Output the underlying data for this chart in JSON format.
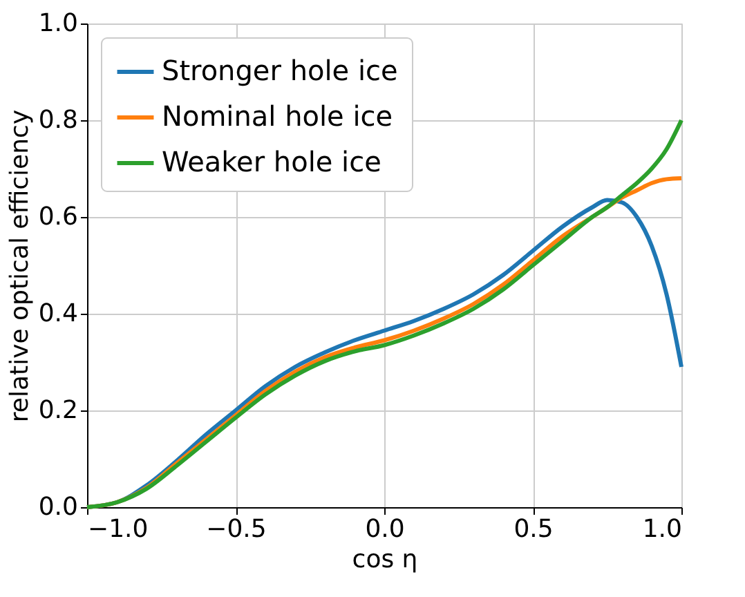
{
  "chart_data": {
    "type": "line",
    "xlabel": "cos η",
    "ylabel": "relative optical efficiency",
    "x": [
      -1.0,
      -0.9,
      -0.8,
      -0.7,
      -0.6,
      -0.5,
      -0.4,
      -0.3,
      -0.2,
      -0.1,
      0.0,
      0.1,
      0.2,
      0.3,
      0.4,
      0.5,
      0.6,
      0.7,
      0.75,
      0.8,
      0.85,
      0.9,
      0.95,
      1.0
    ],
    "series": [
      {
        "name": "Stronger hole ice",
        "color": "#1f77b4",
        "values": [
          0.0,
          0.01,
          0.045,
          0.095,
          0.15,
          0.2,
          0.25,
          0.29,
          0.32,
          0.345,
          0.365,
          0.385,
          0.41,
          0.44,
          0.48,
          0.53,
          0.58,
          0.62,
          0.635,
          0.63,
          0.6,
          0.54,
          0.44,
          0.29
        ]
      },
      {
        "name": "Nominal hole ice",
        "color": "#ff7f0e",
        "values": [
          0.0,
          0.01,
          0.04,
          0.09,
          0.14,
          0.19,
          0.24,
          0.28,
          0.31,
          0.33,
          0.345,
          0.365,
          0.39,
          0.42,
          0.46,
          0.51,
          0.56,
          0.6,
          0.62,
          0.64,
          0.655,
          0.67,
          0.678,
          0.68
        ]
      },
      {
        "name": "Weaker hole ice",
        "color": "#2ca02c",
        "values": [
          0.0,
          0.01,
          0.038,
          0.085,
          0.135,
          0.185,
          0.233,
          0.272,
          0.302,
          0.322,
          0.335,
          0.355,
          0.38,
          0.41,
          0.45,
          0.5,
          0.55,
          0.6,
          0.62,
          0.645,
          0.67,
          0.7,
          0.74,
          0.8
        ]
      }
    ],
    "xlim": [
      -1.0,
      1.0
    ],
    "ylim": [
      0.0,
      1.0
    ],
    "xticks": [
      {
        "value": -1.0,
        "label": "−1.0"
      },
      {
        "value": -0.5,
        "label": "−0.5"
      },
      {
        "value": 0.0,
        "label": "0.0"
      },
      {
        "value": 0.5,
        "label": "0.5"
      },
      {
        "value": 1.0,
        "label": "1.0"
      }
    ],
    "yticks": [
      {
        "value": 0.0,
        "label": "0.0"
      },
      {
        "value": 0.2,
        "label": "0.2"
      },
      {
        "value": 0.4,
        "label": "0.4"
      },
      {
        "value": 0.6,
        "label": "0.6"
      },
      {
        "value": 0.8,
        "label": "0.8"
      },
      {
        "value": 1.0,
        "label": "1.0"
      }
    ],
    "grid": true,
    "legend": "top left",
    "line_style": "solid",
    "marker": "none"
  }
}
